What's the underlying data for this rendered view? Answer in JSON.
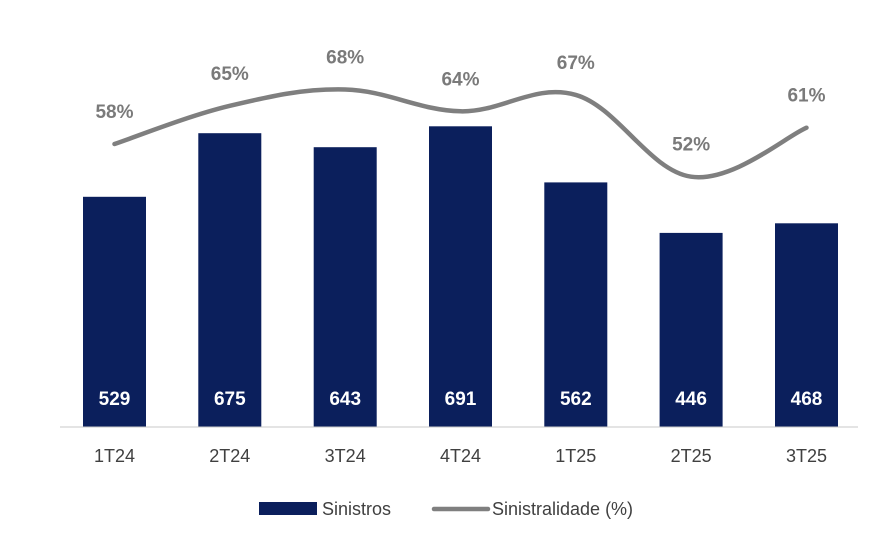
{
  "chart_data": {
    "type": "bar",
    "categories": [
      "1T24",
      "2T24",
      "3T24",
      "4T24",
      "1T25",
      "2T25",
      "3T25"
    ],
    "series": [
      {
        "name": "Sinistros",
        "type": "bar",
        "values": [
          529,
          675,
          643,
          691,
          562,
          446,
          468
        ],
        "labels": [
          "529",
          "675",
          "643",
          "691",
          "562",
          "446",
          "468"
        ],
        "color": "#0b1f5c"
      },
      {
        "name": "Sinistralidade (%)",
        "type": "line",
        "values": [
          58,
          65,
          68,
          64,
          67,
          52,
          61
        ],
        "labels": [
          "58%",
          "65%",
          "68%",
          "64%",
          "67%",
          "52%",
          "61%"
        ],
        "color": "#7f7f7f"
      }
    ],
    "legend": {
      "placement": "bottom",
      "entries": [
        "Sinistros",
        "Sinistralidade (%)"
      ]
    },
    "grid": false
  }
}
